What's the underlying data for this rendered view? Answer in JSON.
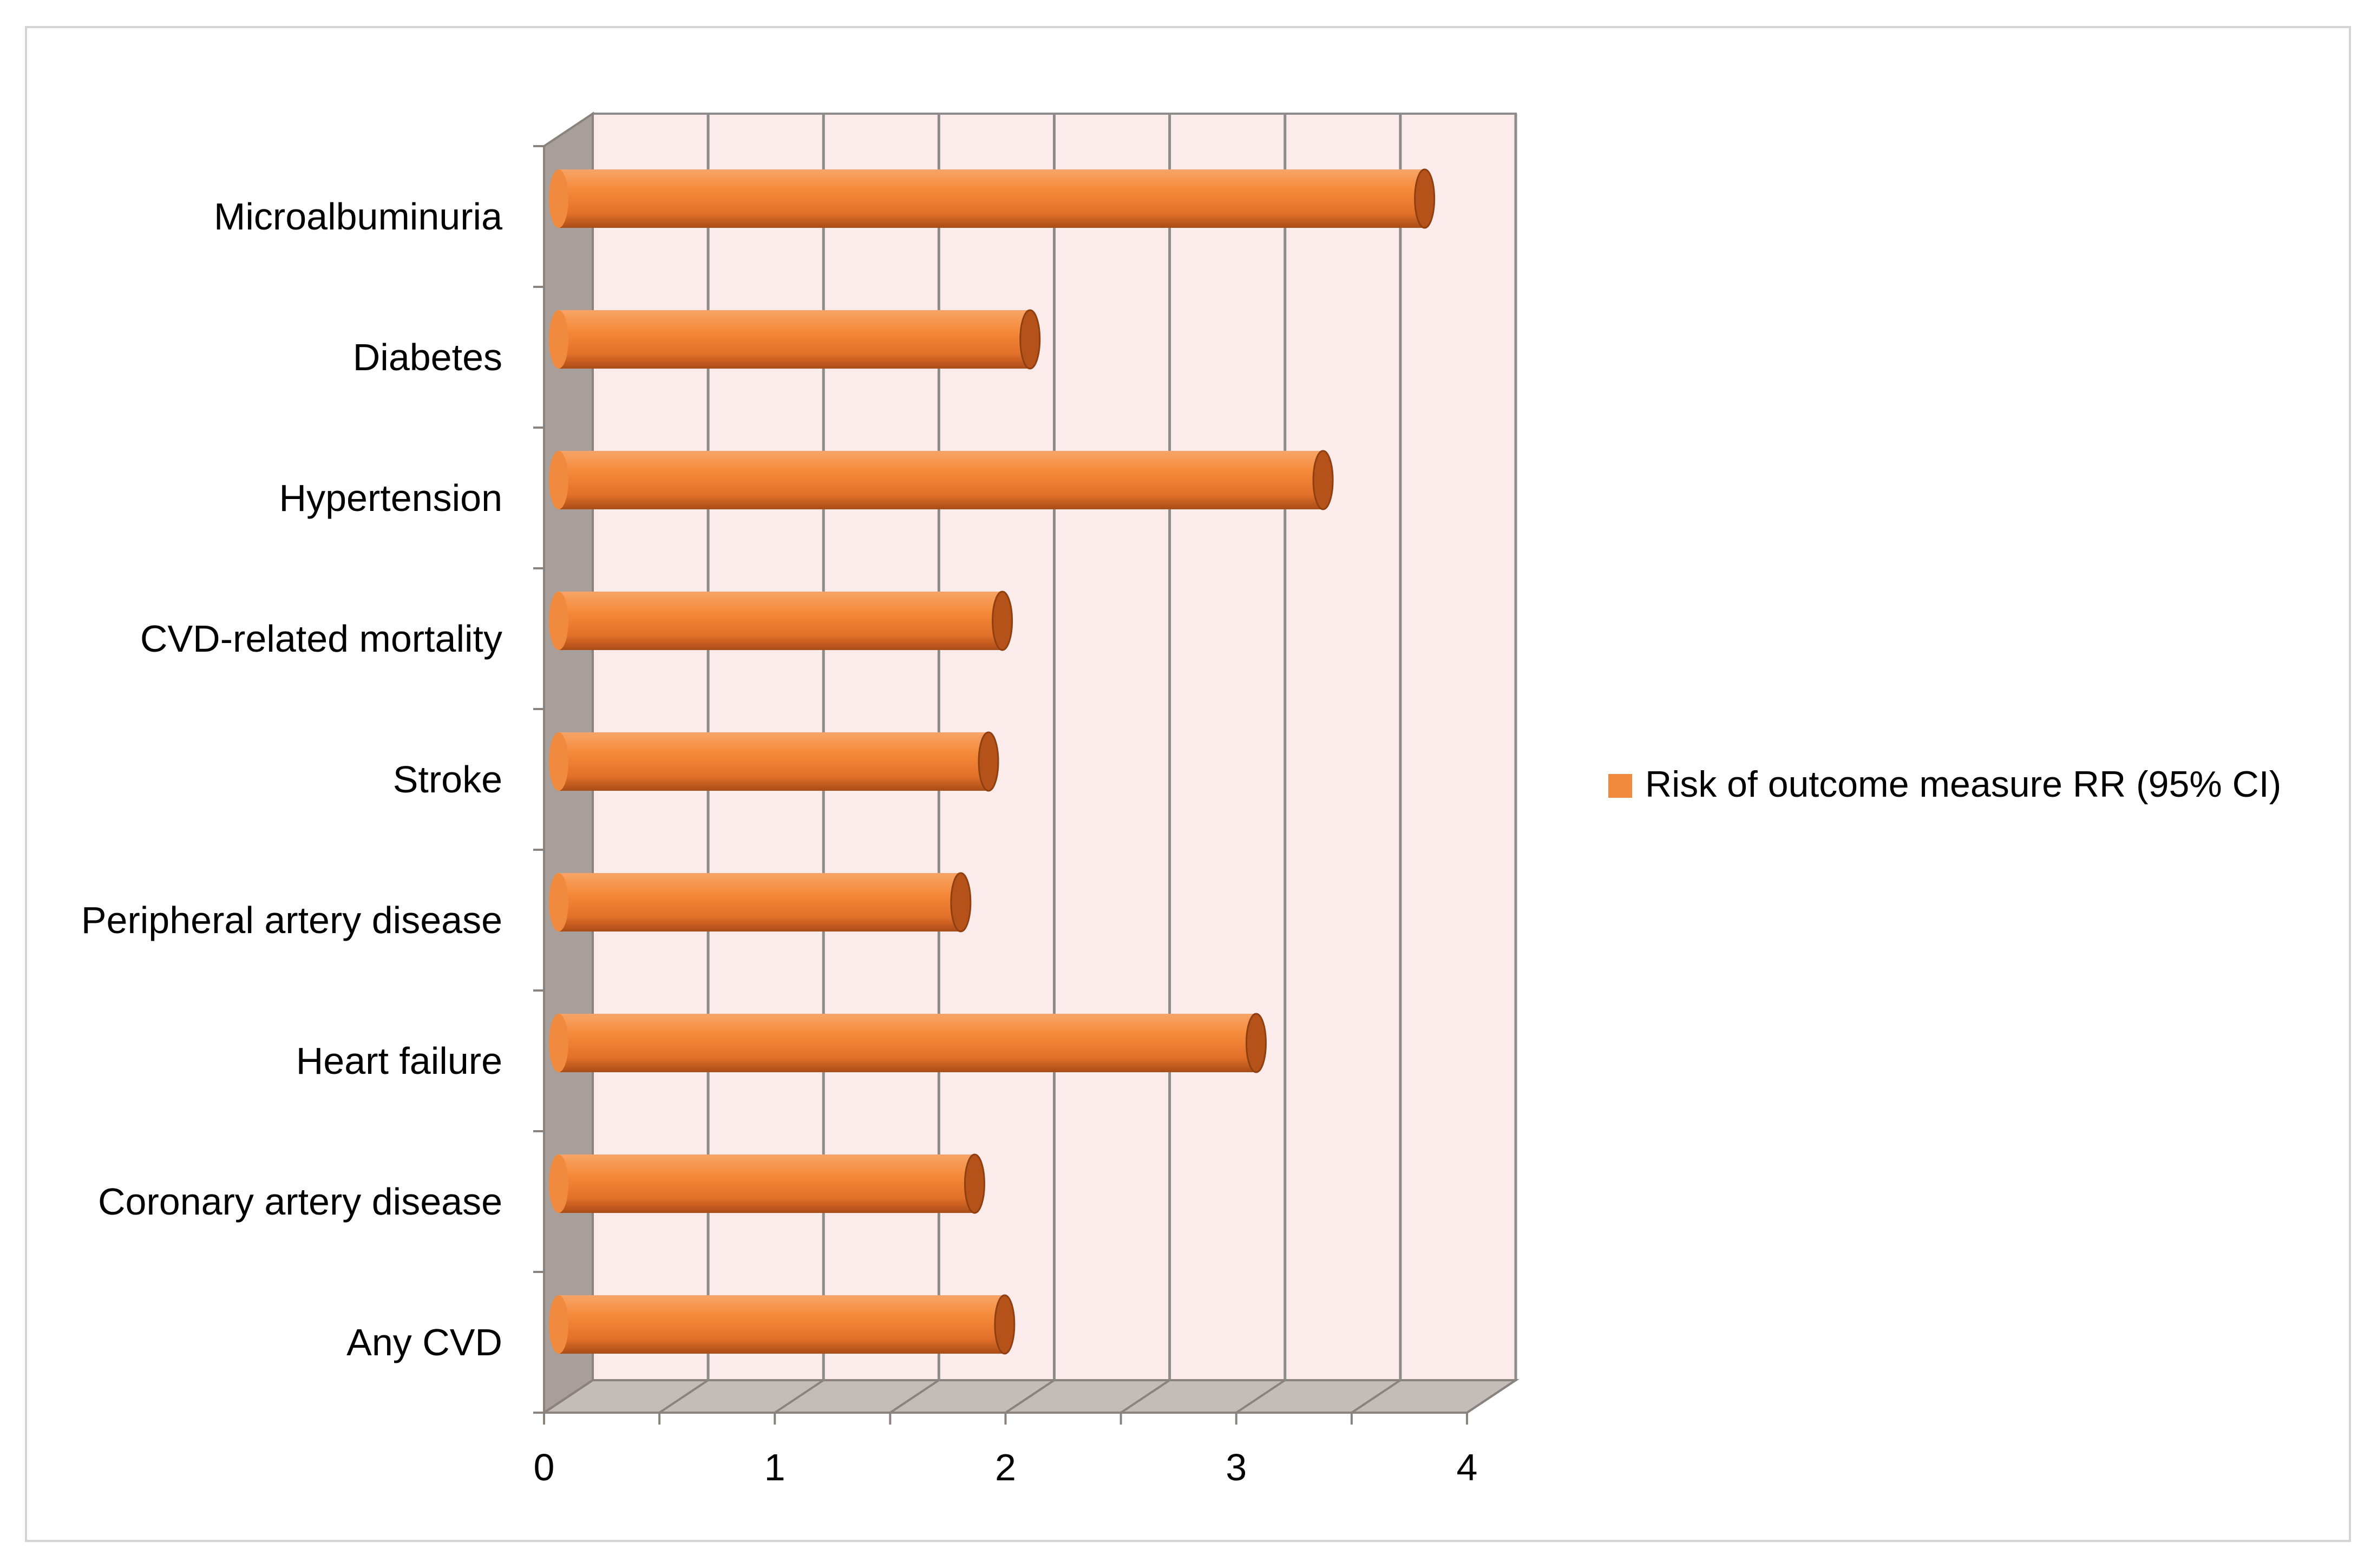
{
  "chart_data": {
    "type": "bar",
    "orientation": "horizontal",
    "style": "3d-cylinder",
    "categories": [
      "Microalbuminuria",
      "Diabetes",
      "Hypertension",
      "CVD-related mortality",
      "Stroke",
      "Peripheral artery disease",
      "Heart failure",
      "Coronary artery disease",
      "Any CVD"
    ],
    "series": [
      {
        "name": "Risk of outcome measure RR (95% CI)",
        "values": [
          3.7,
          1.99,
          3.26,
          1.87,
          1.81,
          1.69,
          2.97,
          1.75,
          1.88
        ]
      }
    ],
    "xlim": [
      0,
      4
    ],
    "xticks": [
      "0",
      "1",
      "2",
      "3",
      "4"
    ],
    "grid": true,
    "legend_position": "right",
    "colors": {
      "bar": "#f08a3e",
      "bar_dark": "#b4521a",
      "wall": "#fbeceb",
      "side_wall": "#a89f9a",
      "floor": "#c4bcb8",
      "grid": "#8c8c8c",
      "frame": "#d0d0d0"
    }
  }
}
